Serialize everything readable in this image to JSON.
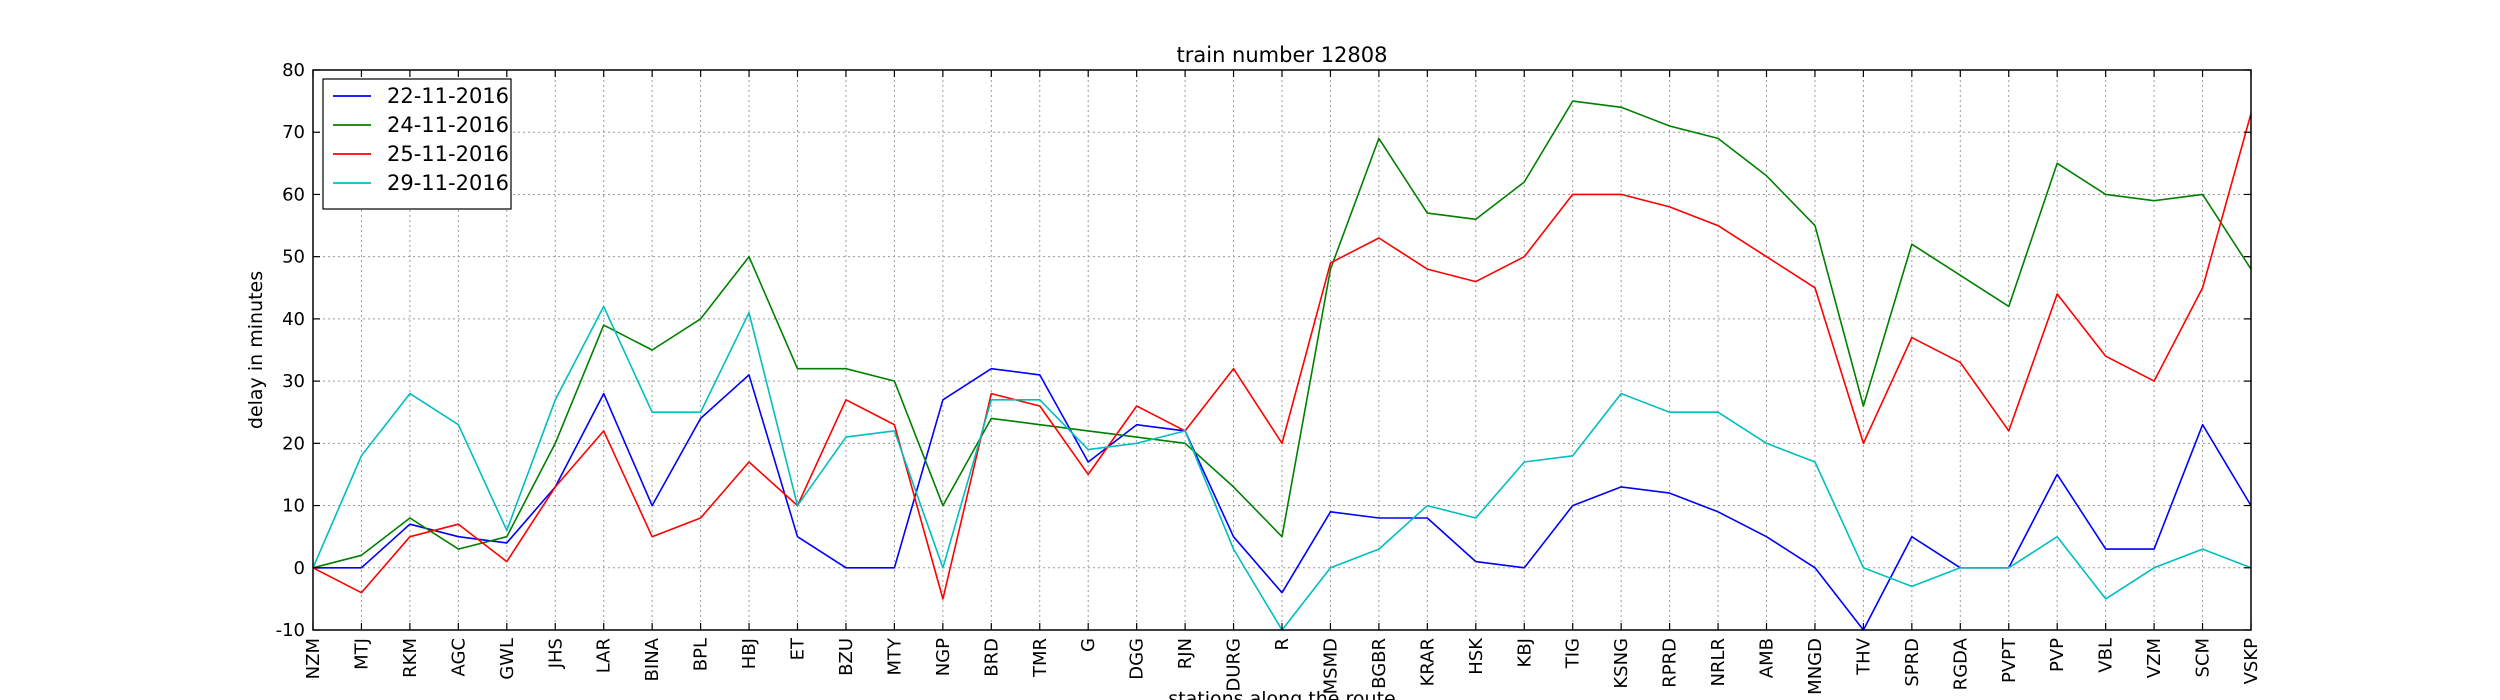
{
  "chart_data": {
    "type": "line",
    "title": "train number 12808",
    "xlabel": "stations along the route",
    "ylabel": "delay in minutes",
    "ylim": [
      -10,
      80
    ],
    "yticks": [
      -10,
      0,
      10,
      20,
      30,
      40,
      50,
      60,
      70,
      80
    ],
    "grid": true,
    "legend_position": "top-left",
    "categories": [
      "NZM",
      "MTJ",
      "RKM",
      "AGC",
      "GWL",
      "JHS",
      "LAR",
      "BINA",
      "BPL",
      "HBJ",
      "ET",
      "BZU",
      "MTY",
      "NGP",
      "BRD",
      "TMR",
      "G",
      "DGG",
      "RJN",
      "DURG",
      "R",
      "MSMD",
      "BGBR",
      "KRAR",
      "HSK",
      "KBJ",
      "TIG",
      "KSNG",
      "RPRD",
      "NRLR",
      "AMB",
      "MNGD",
      "THV",
      "SPRD",
      "RGDA",
      "PVPT",
      "PVP",
      "VBL",
      "VZM",
      "SCM",
      "VSKP"
    ],
    "series": [
      {
        "name": "22-11-2016",
        "color": "#0000ff",
        "values": [
          0,
          0,
          7,
          5,
          4,
          13,
          28,
          10,
          24,
          31,
          5,
          0,
          0,
          27,
          32,
          31,
          17,
          23,
          22,
          5,
          -4,
          9,
          8,
          8,
          1,
          0,
          10,
          13,
          12,
          9,
          5,
          0,
          -10,
          5,
          0,
          0,
          15,
          3,
          3,
          23,
          10
        ]
      },
      {
        "name": "24-11-2016",
        "color": "#008000",
        "values": [
          0,
          2,
          8,
          3,
          5,
          20,
          39,
          35,
          40,
          50,
          32,
          32,
          30,
          10,
          24,
          23,
          22,
          21,
          20,
          13,
          5,
          48,
          69,
          57,
          56,
          62,
          75,
          74,
          71,
          69,
          63,
          55,
          26,
          52,
          47,
          42,
          65,
          60,
          59,
          60,
          48
        ]
      },
      {
        "name": "25-11-2016",
        "color": "#ff0000",
        "values": [
          0,
          -4,
          5,
          7,
          1,
          13,
          22,
          5,
          8,
          17,
          10,
          27,
          23,
          -5,
          28,
          26,
          15,
          26,
          22,
          32,
          20,
          49,
          53,
          48,
          46,
          50,
          60,
          60,
          58,
          55,
          50,
          45,
          20,
          37,
          33,
          22,
          44,
          34,
          30,
          45,
          73
        ]
      },
      {
        "name": "29-11-2016",
        "color": "#00bfbf",
        "values": [
          0,
          18,
          28,
          23,
          6,
          27,
          42,
          25,
          25,
          41,
          10,
          21,
          22,
          0,
          27,
          27,
          19,
          20,
          22,
          3,
          -10,
          0,
          3,
          10,
          8,
          17,
          18,
          28,
          25,
          25,
          20,
          17,
          0,
          -3,
          0,
          0,
          5,
          -5,
          0,
          3,
          0
        ]
      }
    ]
  }
}
